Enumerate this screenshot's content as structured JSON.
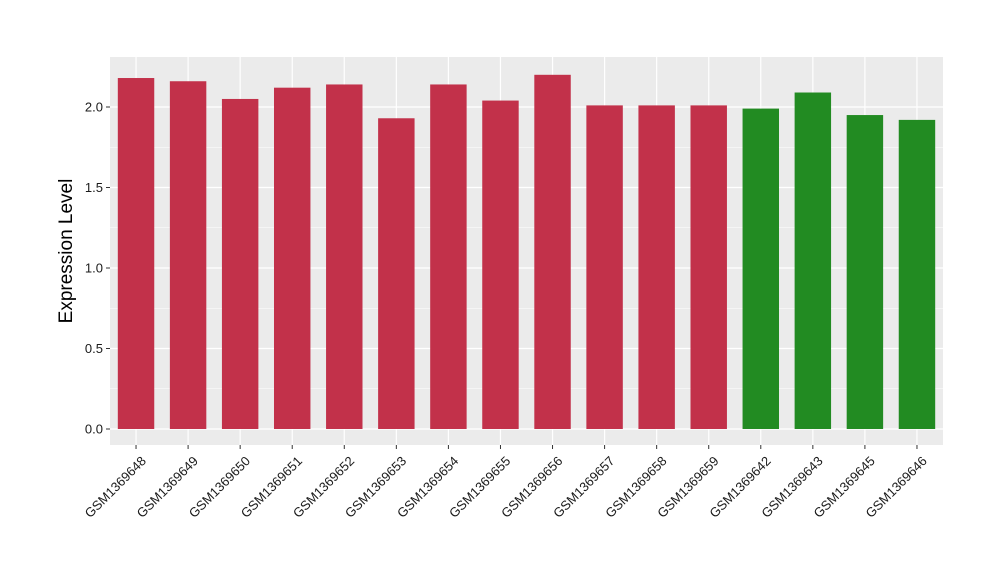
{
  "chart_data": {
    "type": "bar",
    "title": "",
    "xlabel": "",
    "ylabel": "Expression Level",
    "ylim": [
      0,
      2.25
    ],
    "yticks": [
      "0.0",
      "0.5",
      "1.0",
      "1.5",
      "2.0"
    ],
    "grid": true,
    "legend": "none",
    "categories": [
      "GSM1369648",
      "GSM1369649",
      "GSM1369650",
      "GSM1369651",
      "GSM1369652",
      "GSM1369653",
      "GSM1369654",
      "GSM1369655",
      "GSM1369656",
      "GSM1369657",
      "GSM1369658",
      "GSM1369659",
      "GSM1369642",
      "GSM1369643",
      "GSM1369645",
      "GSM1369646"
    ],
    "values": [
      2.18,
      2.16,
      2.05,
      2.12,
      2.14,
      1.93,
      2.14,
      2.04,
      2.2,
      2.01,
      2.01,
      2.01,
      1.99,
      2.09,
      1.95,
      1.92
    ],
    "bar_colors": [
      "#c2314a",
      "#c2314a",
      "#c2314a",
      "#c2314a",
      "#c2314a",
      "#c2314a",
      "#c2314a",
      "#c2314a",
      "#c2314a",
      "#c2314a",
      "#c2314a",
      "#c2314a",
      "#228b22",
      "#228b22",
      "#228b22",
      "#228b22"
    ],
    "panel_background": "#ebebeb",
    "grid_color": "#ffffff"
  }
}
